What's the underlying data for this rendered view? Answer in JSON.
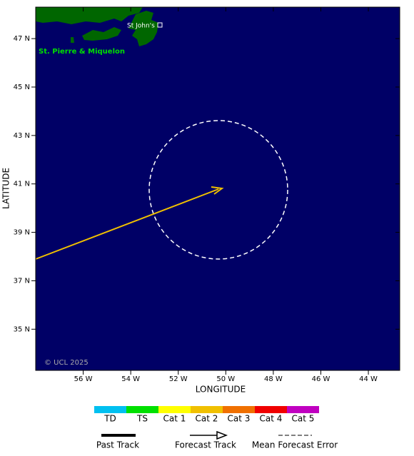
{
  "map": {
    "lon_range": [
      -58,
      -42.68
    ],
    "lat_range": [
      33.3,
      48.3
    ],
    "lon_ticks": [
      {
        "value": -56,
        "label": "56 W"
      },
      {
        "value": -54,
        "label": "54 W"
      },
      {
        "value": -52,
        "label": "52 W"
      },
      {
        "value": -50,
        "label": "50 W"
      },
      {
        "value": -48,
        "label": "48 W"
      },
      {
        "value": -46,
        "label": "46 W"
      },
      {
        "value": -44,
        "label": "44 W"
      }
    ],
    "lat_ticks": [
      {
        "value": 47,
        "label": "47 N"
      },
      {
        "value": 45,
        "label": "45 N"
      },
      {
        "value": 43,
        "label": "43 N"
      },
      {
        "value": 41,
        "label": "41 N"
      },
      {
        "value": 39,
        "label": "39 N"
      },
      {
        "value": 37,
        "label": "37 N"
      },
      {
        "value": 35,
        "label": "35 N"
      }
    ],
    "x_label": "LONGITUDE",
    "y_label": "LATITUDE",
    "places": [
      "St John's",
      "St. Pierre & Miquelon"
    ],
    "copyright": "© UCL 2025"
  },
  "legend": {
    "categories": [
      {
        "name": "TD",
        "color": "#00c0f0"
      },
      {
        "name": "TS",
        "color": "#00e000"
      },
      {
        "name": "Cat 1",
        "color": "#ffff00"
      },
      {
        "name": "Cat 2",
        "color": "#f0c000"
      },
      {
        "name": "Cat 3",
        "color": "#f07000"
      },
      {
        "name": "Cat 4",
        "color": "#f00000"
      },
      {
        "name": "Cat 5",
        "color": "#c000c0"
      }
    ],
    "tracks": [
      "Past Track",
      "Forecast Track",
      "Mean Forecast Error"
    ]
  }
}
